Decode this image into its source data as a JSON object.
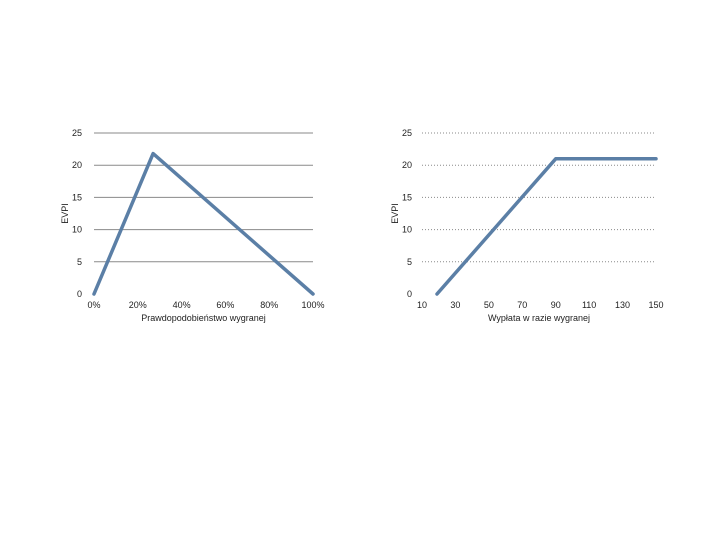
{
  "chart_data": [
    {
      "type": "line",
      "xlabel": "Prawdopodobieństwo wygranej",
      "ylabel": "EVPI",
      "xlim": [
        0,
        100
      ],
      "ylim": [
        0,
        25
      ],
      "x_ticks": [
        "0%",
        "20%",
        "40%",
        "60%",
        "80%",
        "100%"
      ],
      "y_ticks": [
        "0",
        "5",
        "10",
        "15",
        "20",
        "25"
      ],
      "grid": "solid",
      "series": [
        {
          "x": [
            0,
            27,
            100
          ],
          "y": [
            0,
            21.8,
            0
          ]
        }
      ],
      "color": "#5b7fa6"
    },
    {
      "type": "line",
      "xlabel": "Wypłata w razie wygranej",
      "ylabel": "EVPI",
      "xlim": [
        10,
        150
      ],
      "ylim": [
        0,
        25
      ],
      "x_ticks": [
        "10",
        "30",
        "50",
        "70",
        "90",
        "110",
        "130",
        "150"
      ],
      "y_ticks": [
        "0",
        "5",
        "10",
        "15",
        "20",
        "25"
      ],
      "grid": "dotted",
      "series": [
        {
          "x": [
            19,
            90,
            150
          ],
          "y": [
            0,
            21,
            21
          ]
        }
      ],
      "color": "#5b7fa6"
    }
  ]
}
